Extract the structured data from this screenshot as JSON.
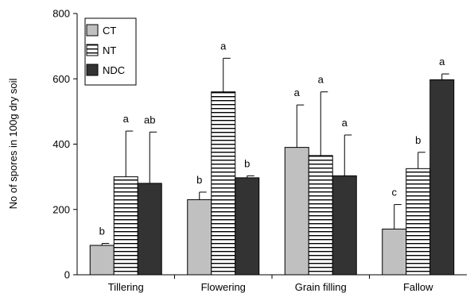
{
  "chart_data": {
    "type": "bar",
    "title": "",
    "xlabel": "",
    "ylabel": "No of spores in 100g dry soil",
    "ylim": [
      0,
      800
    ],
    "yticks": [
      0,
      200,
      400,
      600,
      800
    ],
    "grid": false,
    "legend_position": "top-left",
    "categories": [
      "Tillering",
      "Flowering",
      "Grain filling",
      "Fallow"
    ],
    "series": [
      {
        "name": "CT",
        "color": "#c0c0c0",
        "pattern": "solid",
        "values": [
          90,
          230,
          390,
          140
        ],
        "error": [
          6,
          23,
          130,
          75
        ],
        "letters": [
          "b",
          "b",
          "a",
          "c"
        ]
      },
      {
        "name": "NT",
        "color": "#ffffff",
        "pattern": "horizontal-stripes",
        "values": [
          300,
          560,
          365,
          325
        ],
        "error": [
          140,
          103,
          195,
          50
        ],
        "letters": [
          "a",
          "a",
          "a",
          "b"
        ]
      },
      {
        "name": "NDC",
        "color": "#333333",
        "pattern": "solid",
        "values": [
          280,
          297,
          303,
          597
        ],
        "error": [
          157,
          6,
          125,
          18
        ],
        "letters": [
          "ab",
          "b",
          "a",
          "a"
        ]
      }
    ]
  }
}
